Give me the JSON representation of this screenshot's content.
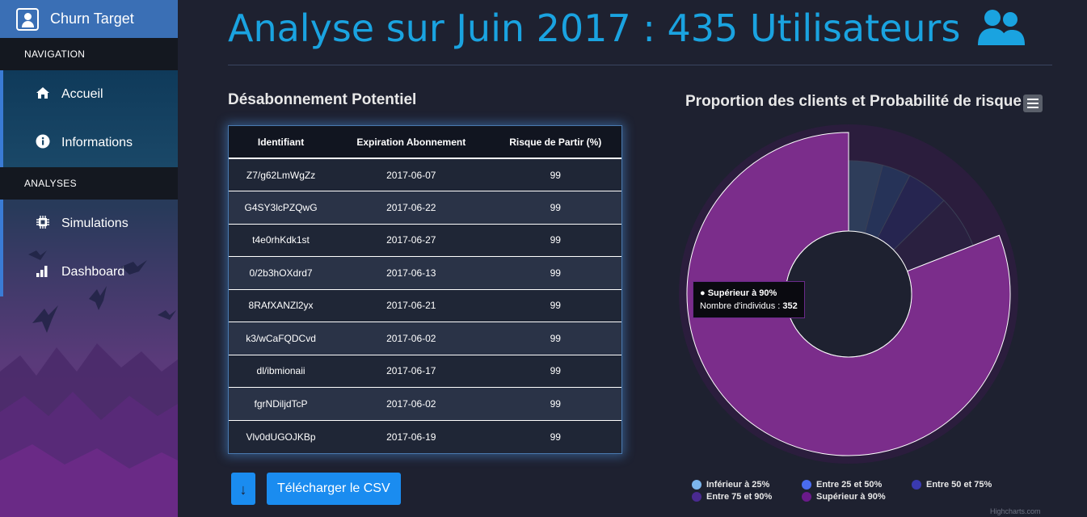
{
  "sidebar": {
    "brand": "Churn Target",
    "sections": [
      {
        "header": "NAVIGATION",
        "items": [
          {
            "label": "Accueil",
            "icon": "home-icon"
          },
          {
            "label": "Informations",
            "icon": "info-icon"
          }
        ]
      },
      {
        "header": "ANALYSES",
        "items": [
          {
            "label": "Simulations",
            "icon": "chip-icon"
          },
          {
            "label": "Dashboard",
            "icon": "bar-chart-icon"
          }
        ]
      }
    ]
  },
  "header": {
    "title": "Analyse sur Juin 2017 : 435 Utilisateurs",
    "title_icon": "users-icon"
  },
  "table": {
    "title": "Désabonnement Potentiel",
    "columns": [
      "Identifiant",
      "Expiration Abonnement",
      "Risque de Partir (%)"
    ],
    "rows": [
      [
        "Z7/g62LmWgZz",
        "2017-06-07",
        "99"
      ],
      [
        "G4SY3lcPZQwG",
        "2017-06-22",
        "99"
      ],
      [
        "t4e0rhKdk1st",
        "2017-06-27",
        "99"
      ],
      [
        "0/2b3hOXdrd7",
        "2017-06-13",
        "99"
      ],
      [
        "8RAfXANZl2yx",
        "2017-06-21",
        "99"
      ],
      [
        "k3/wCaFQDCvd",
        "2017-06-02",
        "99"
      ],
      [
        "dl/ibmionaii",
        "2017-06-17",
        "99"
      ],
      [
        "fgrNDiljdTcP",
        "2017-06-02",
        "99"
      ],
      [
        "Vlv0dUGOJKBp",
        "2017-06-19",
        "99"
      ]
    ]
  },
  "download": {
    "icon": "download-icon",
    "label": "Télécharger le CSV"
  },
  "chart_data": {
    "type": "pie",
    "variant": "variable-radius donut",
    "title": "Proportion des clients et Probabilité de risque",
    "categories": [
      "Inférieur à 25%",
      "Entre 25 et 50%",
      "Entre 50 et 75%",
      "Entre 75 et 90%",
      "Supérieur à 90%"
    ],
    "values": [
      18,
      15,
      22,
      28,
      352
    ],
    "colors": [
      "#2e3d5a",
      "#263358",
      "#262550",
      "#2a2040",
      "#7b2d8b"
    ],
    "legend_colors": [
      "#7cb5ec",
      "#4a6cf0",
      "#3a3ab0",
      "#4a2a90",
      "#6a1a8a"
    ],
    "legend_position": "bottom",
    "tooltip": {
      "category": "Supérieur à 90%",
      "label": "Nombre d'individus",
      "value": "352"
    },
    "credits": "Highcharts.com"
  },
  "chart_menu_icon": "hamburger-icon"
}
